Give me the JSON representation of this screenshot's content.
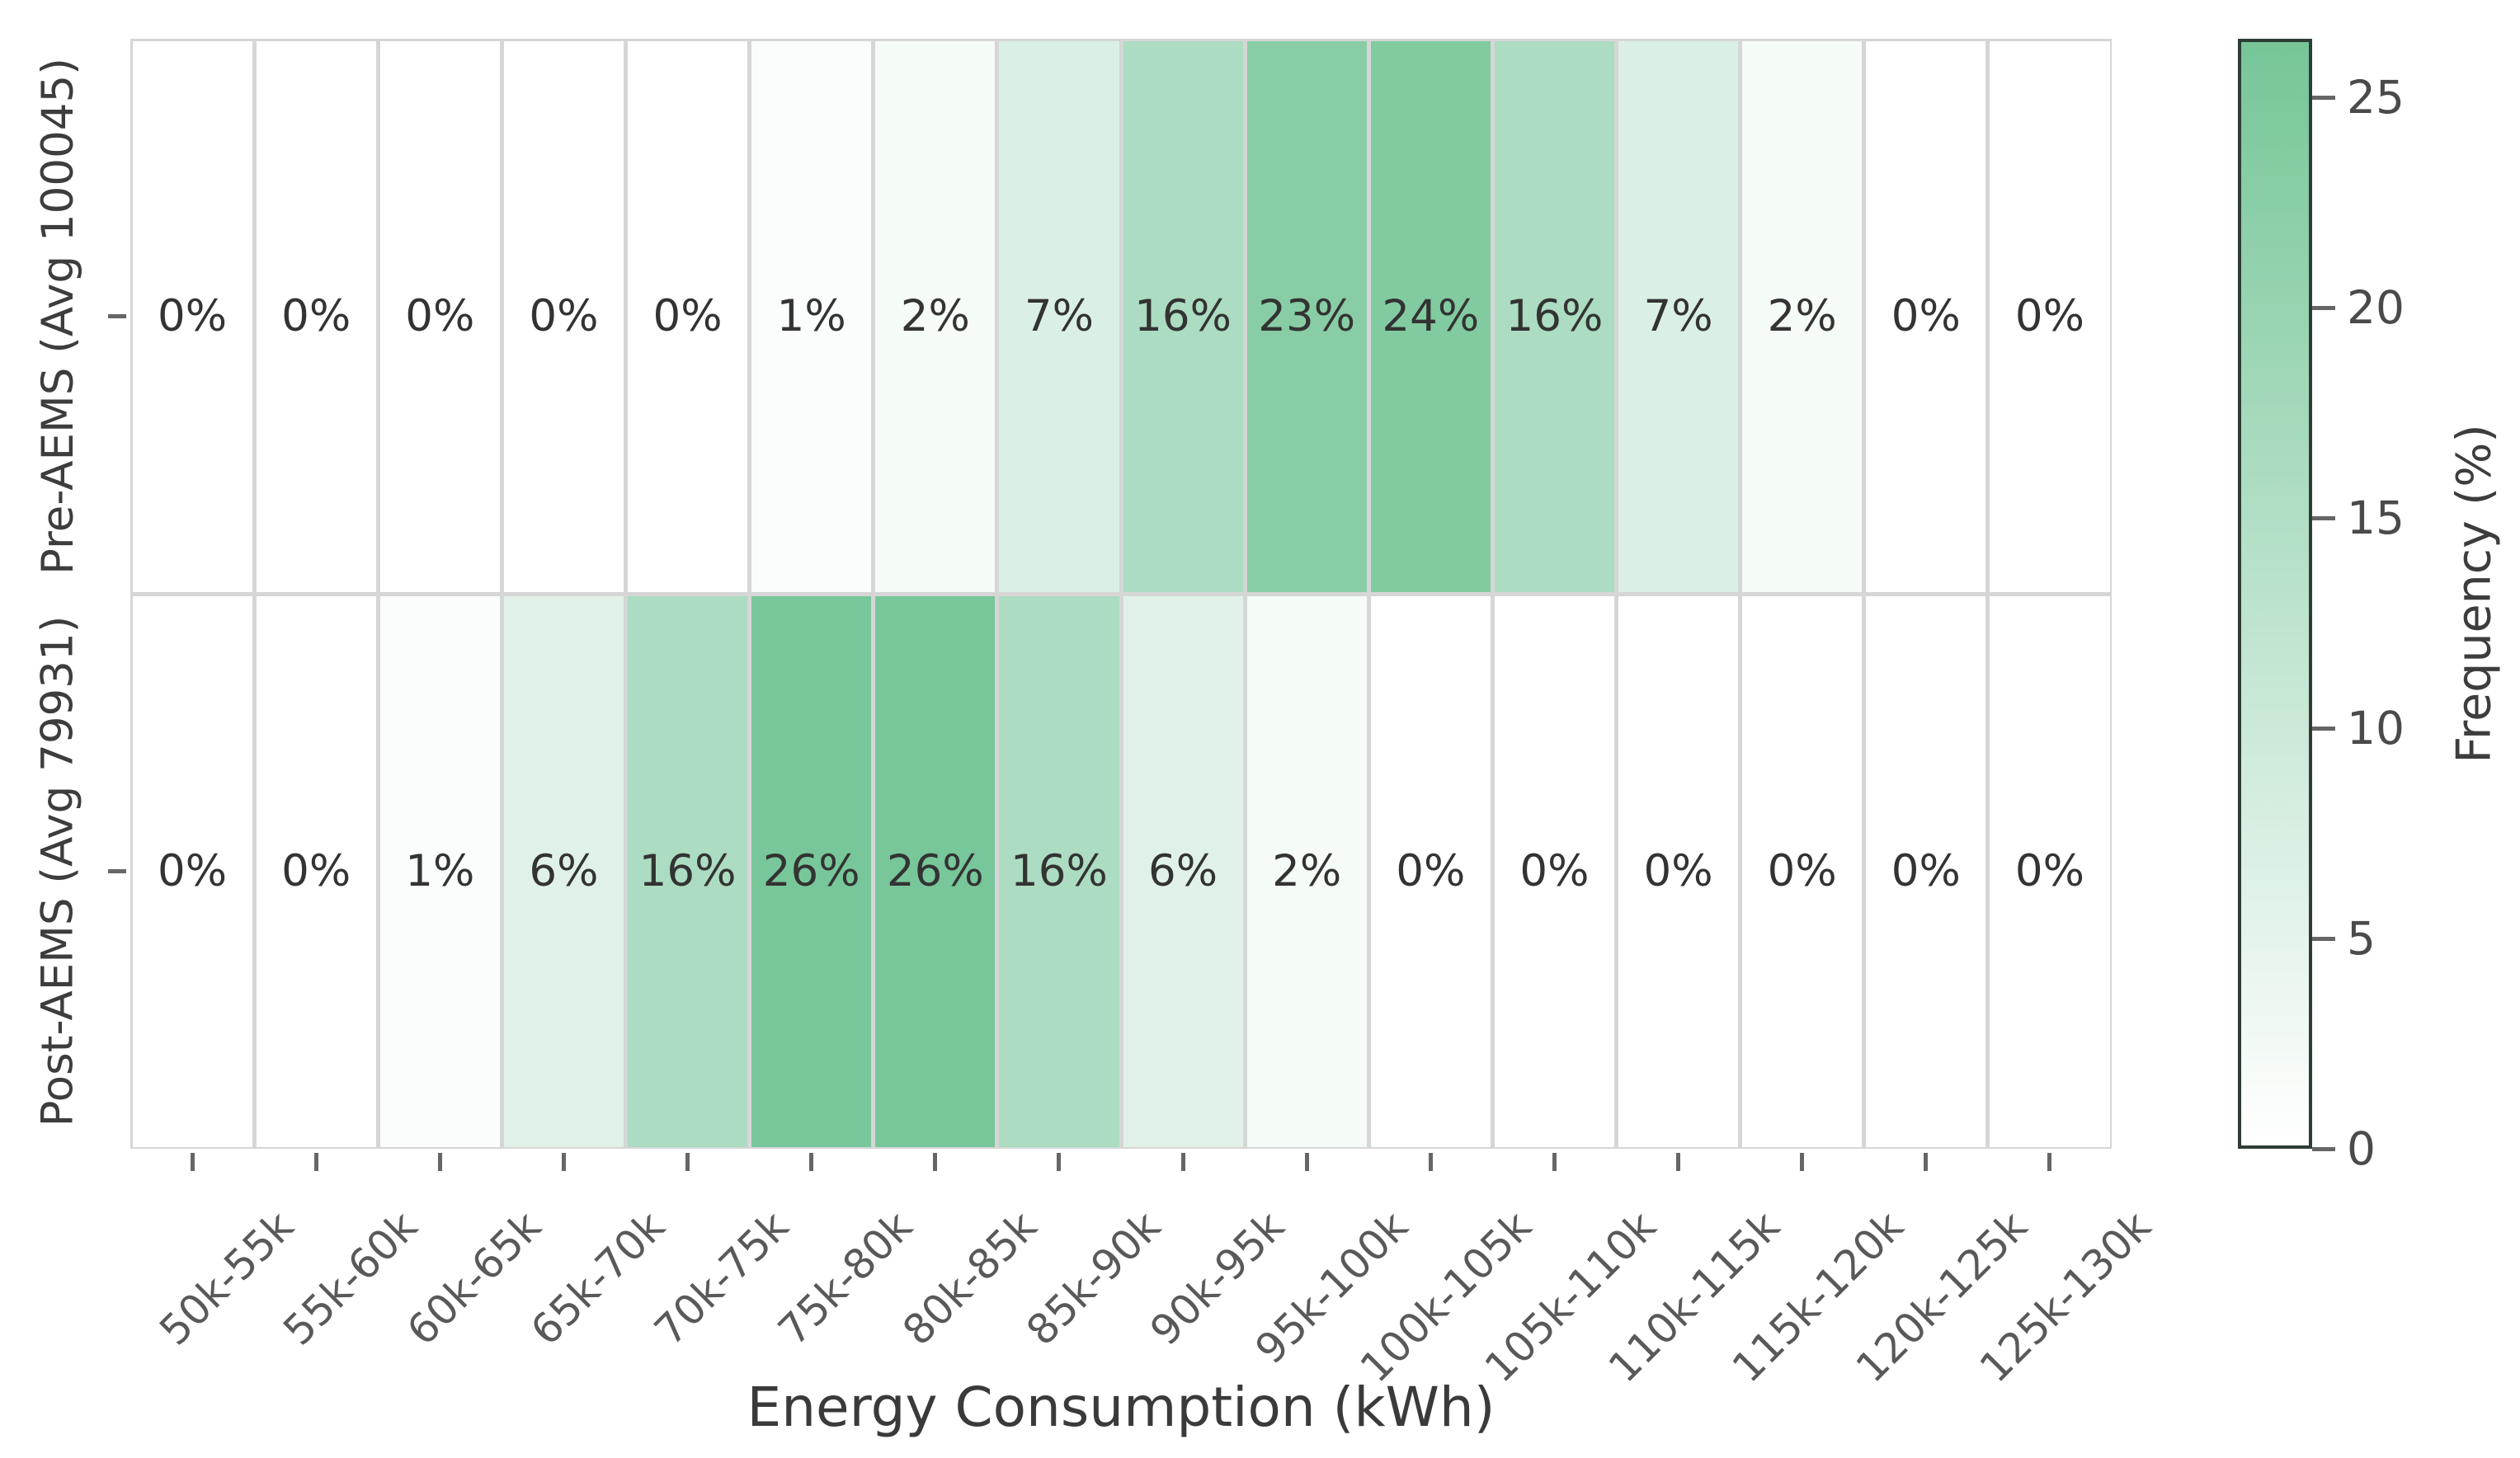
{
  "chart_data": {
    "type": "heatmap",
    "title": "",
    "xlabel": "Energy Consumption (kWh)",
    "ylabel": "",
    "colorbar_label": "Frequency (%)",
    "categories": [
      "50k-55k",
      "55k-60k",
      "60k-65k",
      "65k-70k",
      "70k-75k",
      "75k-80k",
      "80k-85k",
      "85k-90k",
      "90k-95k",
      "95k-100k",
      "100k-105k",
      "105k-110k",
      "110k-115k",
      "115k-120k",
      "120k-125k",
      "125k-130k"
    ],
    "rows": [
      {
        "label": "Pre-AEMS (Avg 100045)",
        "values": [
          0,
          0,
          0,
          0,
          0,
          1,
          2,
          7,
          16,
          23,
          24,
          16,
          7,
          2,
          0,
          0
        ]
      },
      {
        "label": "Post-AEMS (Avg 79931)",
        "values": [
          0,
          0,
          1,
          6,
          16,
          26,
          26,
          16,
          6,
          2,
          0,
          0,
          0,
          0,
          0,
          0
        ]
      }
    ],
    "value_suffix": "%",
    "vmin": 0,
    "vmax": 26.4,
    "colorbar_ticks": [
      0,
      5,
      10,
      15,
      20,
      25
    ],
    "legend_position": "right",
    "grid": true,
    "colors": {
      "cmap_low": "#ffffff",
      "cmap_high": "#76c698",
      "grid_line": "#d6d6d6",
      "colorbar_border": "#2e3d33",
      "annotation": "#333333",
      "tick_label": "#595959",
      "axis_title": "#3a3a3a"
    }
  }
}
